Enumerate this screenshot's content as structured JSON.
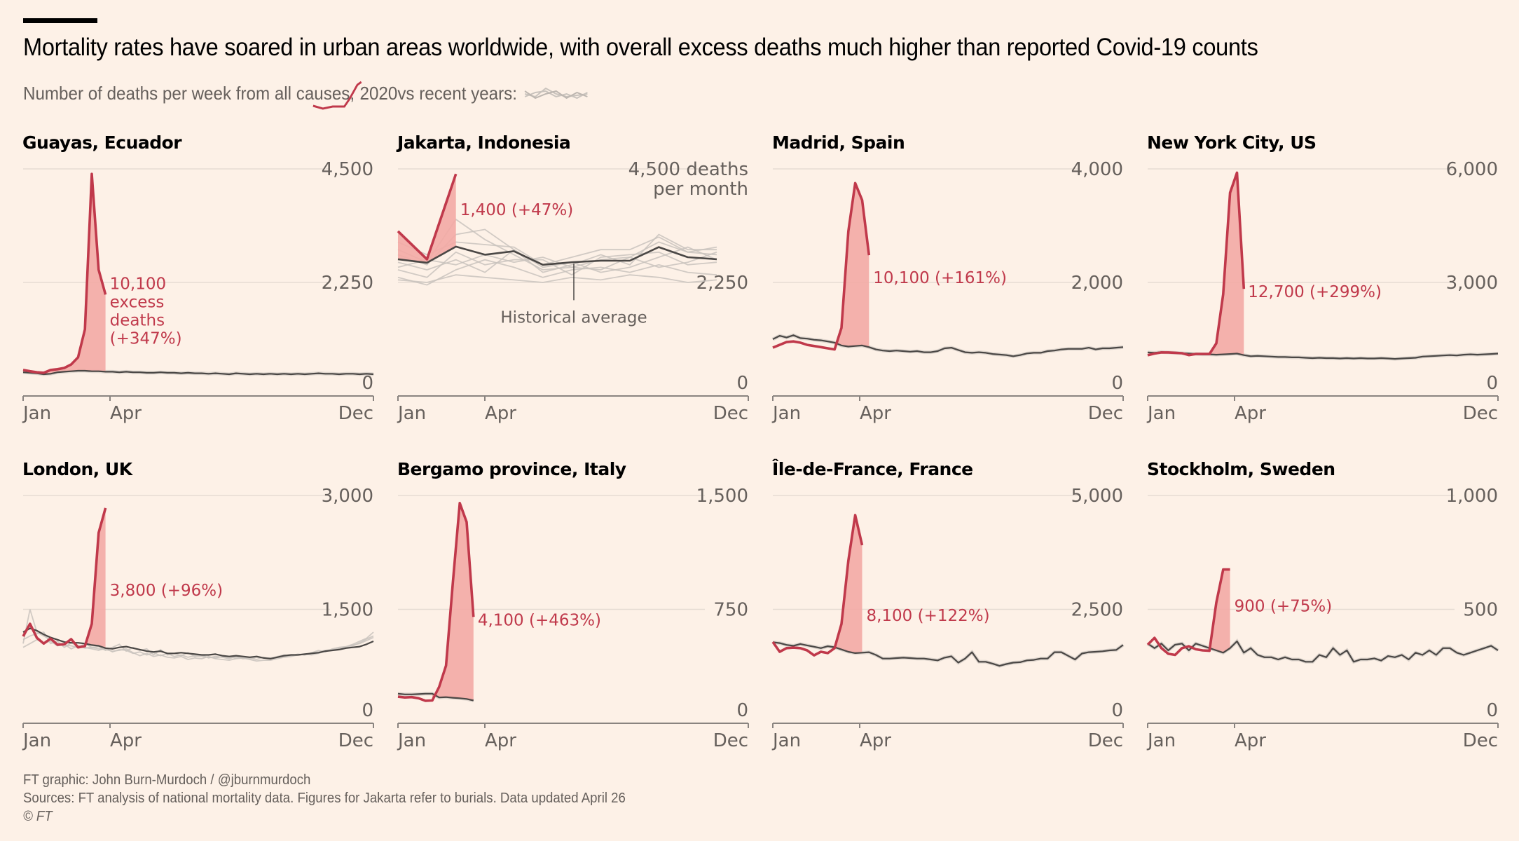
{
  "header": {
    "title": "Mortality rates have soared in urban areas worldwide, with overall excess deaths much higher than reported Covid-19 counts",
    "subtitle_prefix": "Number of deaths per week from all causes,",
    "subtitle_year": "2020",
    "subtitle_suffix": "vs recent years:",
    "legend_2020_icon": "red-line-sparkline-icon",
    "legend_recent_icon": "grey-lines-sparkline-icon"
  },
  "colors": {
    "background": "#fdf1e7",
    "line_2020": "#c0394b",
    "excess_fill": "#f3aaa5",
    "average_line": "#4a4745",
    "recent_years": "#c9c3bd",
    "gridline": "#e6dcd3",
    "axis": "#8a8480",
    "tick_label": "#66605c",
    "annotation": "#c0394b"
  },
  "footer": {
    "credit": "FT graphic: John Burn-Murdoch / @jburnmurdoch",
    "sources": "Sources: FT analysis of national mortality data. Figures for Jakarta refer to burials. Data updated April 26",
    "copyright": "© FT"
  },
  "chart_data": [
    {
      "type": "line",
      "title": "Guayas, Ecuador",
      "x_ticks": [
        "Jan",
        "Apr",
        "Dec"
      ],
      "y_ticks": [
        0,
        2250,
        4500
      ],
      "y_tick_labels": [
        "0",
        "2,250",
        "4,500"
      ],
      "ylim": [
        0,
        4500
      ],
      "granularity": "weekly",
      "annotation": [
        "10,100",
        "excess",
        "deaths",
        "(+347%)"
      ],
      "series_2020": [
        515,
        490,
        470,
        460,
        515,
        530,
        555,
        625,
        765,
        1320,
        4400,
        2500,
        2010
      ],
      "historical_average": [
        470,
        460,
        450,
        430,
        440,
        470,
        480,
        490,
        500,
        500,
        490,
        490,
        480,
        480,
        470,
        480,
        470,
        470,
        460,
        460,
        470,
        460,
        460,
        450,
        460,
        450,
        450,
        440,
        450,
        440,
        430,
        450,
        440,
        430,
        440,
        430,
        440,
        430,
        440,
        430,
        440,
        430,
        440,
        450,
        440,
        440,
        430,
        440,
        440,
        430,
        440,
        430
      ]
    },
    {
      "type": "line",
      "title": "Jakarta, Indonesia",
      "x_ticks": [
        "Jan",
        "Apr",
        "Dec"
      ],
      "y_ticks": [
        0,
        2250,
        4500
      ],
      "y_tick_labels": [
        "0",
        "2,250",
        "4,500 deaths"
      ],
      "y_unit_note": "per month",
      "ylim": [
        0,
        4500
      ],
      "granularity": "monthly",
      "annotation": [
        "1,400 (+47%)"
      ],
      "average_label": "Historical average",
      "series_2020": [
        3265,
        2710,
        4400
      ],
      "historical_average": [
        2710,
        2640,
        2960,
        2800,
        2870,
        2600,
        2650,
        2680,
        2680,
        2950,
        2750,
        2710
      ],
      "recent_years": [
        [
          2900,
          2650,
          3500,
          3100,
          2800,
          2500,
          2550,
          2700,
          2750,
          3050,
          2850,
          2800
        ],
        [
          2800,
          2600,
          3200,
          3300,
          2900,
          2450,
          2600,
          2800,
          2600,
          3200,
          2900,
          2900
        ],
        [
          2350,
          2200,
          2500,
          2700,
          2550,
          2350,
          2500,
          2550,
          2450,
          2600,
          2450,
          2400
        ],
        [
          2500,
          2350,
          2850,
          2600,
          2700,
          2700,
          2400,
          2750,
          2800,
          2850,
          2600,
          2650
        ],
        [
          2650,
          2500,
          2700,
          2450,
          2900,
          2550,
          2650,
          2450,
          2550,
          2750,
          2950,
          2700
        ],
        [
          2300,
          2250,
          2400,
          2350,
          2300,
          2250,
          2350,
          2300,
          2400,
          2350,
          2250,
          2300
        ],
        [
          3050,
          2800,
          3050,
          3000,
          2950,
          2600,
          2750,
          2900,
          2900,
          3150,
          2850,
          2950
        ],
        [
          2550,
          2700,
          2600,
          2800,
          2650,
          2750,
          2550,
          2500,
          2750,
          2550,
          2650,
          2850
        ]
      ]
    },
    {
      "type": "line",
      "title": "Madrid, Spain",
      "x_ticks": [
        "Jan",
        "Apr",
        "Dec"
      ],
      "y_ticks": [
        0,
        2000,
        4000
      ],
      "y_tick_labels": [
        "0",
        "2,000",
        "4,000"
      ],
      "ylim": [
        0,
        4000
      ],
      "granularity": "weekly",
      "annotation": [
        "10,100 (+161%)"
      ],
      "series_2020": [
        850,
        900,
        950,
        960,
        940,
        900,
        880,
        860,
        840,
        820,
        1200,
        2900,
        3750,
        3450,
        2480
      ],
      "historical_average": [
        1000,
        1060,
        1030,
        1070,
        1020,
        1010,
        990,
        980,
        960,
        940,
        890,
        870,
        880,
        890,
        860,
        820,
        800,
        790,
        800,
        790,
        780,
        790,
        770,
        770,
        790,
        840,
        850,
        810,
        770,
        760,
        770,
        760,
        740,
        730,
        720,
        700,
        720,
        750,
        760,
        760,
        790,
        800,
        820,
        830,
        830,
        830,
        850,
        820,
        840,
        840,
        850,
        860
      ]
    },
    {
      "type": "line",
      "title": "New York City, US",
      "x_ticks": [
        "Jan",
        "Apr",
        "Dec"
      ],
      "y_ticks": [
        0,
        3000,
        6000
      ],
      "y_tick_labels": [
        "0",
        "3,000",
        "6,000"
      ],
      "ylim": [
        0,
        6000
      ],
      "granularity": "weekly",
      "annotation": [
        "12,700 (+299%)"
      ],
      "series_2020": [
        1075,
        1120,
        1150,
        1150,
        1140,
        1130,
        1080,
        1110,
        1110,
        1110,
        1390,
        2690,
        5370,
        5900,
        2830
      ],
      "historical_average": [
        1150,
        1140,
        1160,
        1150,
        1140,
        1130,
        1120,
        1110,
        1100,
        1100,
        1090,
        1100,
        1110,
        1120,
        1080,
        1050,
        1060,
        1050,
        1040,
        1030,
        1030,
        1020,
        1020,
        1010,
        1000,
        1010,
        1000,
        1000,
        990,
        1000,
        990,
        1000,
        990,
        990,
        1000,
        990,
        980,
        990,
        1000,
        1010,
        1040,
        1050,
        1060,
        1070,
        1080,
        1070,
        1090,
        1100,
        1090,
        1100,
        1110,
        1120
      ]
    },
    {
      "type": "line",
      "title": "London, UK",
      "x_ticks": [
        "Jan",
        "Apr",
        "Dec"
      ],
      "y_ticks": [
        0,
        1500,
        3000
      ],
      "y_tick_labels": [
        "0",
        "1,500",
        "3,000"
      ],
      "ylim": [
        0,
        3000
      ],
      "granularity": "weekly",
      "annotation": [
        "3,800 (+96%)"
      ],
      "series_2020": [
        1145,
        1310,
        1125,
        1050,
        1115,
        1035,
        1040,
        1108,
        1000,
        1015,
        1310,
        2510,
        2835
      ],
      "historical_average": [
        1200,
        1250,
        1220,
        1170,
        1130,
        1100,
        1070,
        1060,
        1060,
        1050,
        1030,
        1020,
        990,
        980,
        1000,
        1010,
        990,
        970,
        950,
        940,
        950,
        920,
        920,
        930,
        920,
        910,
        900,
        900,
        910,
        890,
        880,
        890,
        880,
        870,
        880,
        860,
        850,
        870,
        890,
        900,
        900,
        910,
        920,
        930,
        950,
        960,
        970,
        990,
        1000,
        1010,
        1040,
        1080
      ],
      "recent_years": [
        [
          1050,
          1500,
          1200,
          1150,
          1100,
          1050,
          1030,
          1020,
          1000,
          1050,
          1000,
          980,
          970,
          950,
          960,
          980,
          930,
          890,
          920,
          880,
          900,
          870,
          860,
          880,
          840,
          860,
          850,
          880,
          850,
          840,
          830,
          850,
          860,
          840,
          820,
          830,
          830,
          850,
          870,
          880,
          900,
          910,
          900,
          920,
          950,
          960,
          990,
          1000,
          1020,
          1060,
          1110,
          1150
        ],
        [
          1100,
          1150,
          1180,
          1200,
          1050,
          1080,
          1000,
          1060,
          1020,
          990,
          1000,
          1010,
          960,
          1000,
          1040,
          950,
          1000,
          960,
          980,
          900,
          970,
          900,
          920,
          890,
          930,
          880,
          900,
          860,
          880,
          870,
          850,
          880,
          850,
          860,
          840,
          870,
          850,
          880,
          900,
          890,
          910,
          900,
          930,
          960,
          940,
          980,
          1000,
          1010,
          1040,
          1080,
          1120,
          1200
        ],
        [
          1000,
          1050,
          1100,
          1060,
          1080,
          1020,
          1040,
          980,
          1020,
          1000,
          980,
          960,
          990,
          940,
          970,
          960,
          920,
          940,
          900,
          930,
          890,
          920,
          880,
          900,
          870,
          890,
          880,
          870,
          860,
          880,
          870,
          860,
          870,
          850,
          870,
          860,
          860,
          870,
          880,
          890,
          910,
          900,
          930,
          940,
          960,
          970,
          980,
          1000,
          1030,
          1050,
          1090,
          1130
        ]
      ]
    },
    {
      "type": "line",
      "title": "Bergamo province, Italy",
      "x_ticks": [
        "Jan",
        "Apr",
        "Dec"
      ],
      "y_ticks": [
        0,
        750,
        1500
      ],
      "y_tick_labels": [
        "0",
        "750",
        "1,500"
      ],
      "ylim": [
        0,
        1500
      ],
      "granularity": "weekly",
      "annotation": [
        "4,100 (+463%)"
      ],
      "series_2020": [
        175,
        170,
        172,
        165,
        148,
        150,
        240,
        380,
        930,
        1450,
        1325,
        700
      ],
      "historical_average": [
        195,
        190,
        190,
        192,
        195,
        195,
        170,
        172,
        168,
        165,
        160,
        150
      ]
    },
    {
      "type": "line",
      "title": "Île-de-France, France",
      "x_ticks": [
        "Jan",
        "Apr",
        "Dec"
      ],
      "y_ticks": [
        0,
        2500,
        5000
      ],
      "y_tick_labels": [
        "0",
        "2,500",
        "5,000"
      ],
      "ylim": [
        0,
        5000
      ],
      "granularity": "weekly",
      "annotation": [
        "8,100 (+122%)"
      ],
      "series_2020": [
        1785,
        1570,
        1650,
        1660,
        1650,
        1600,
        1490,
        1570,
        1540,
        1650,
        2180,
        3570,
        4570,
        3910
      ],
      "historical_average": [
        1780,
        1760,
        1720,
        1700,
        1740,
        1710,
        1680,
        1650,
        1690,
        1670,
        1620,
        1570,
        1540,
        1550,
        1560,
        1500,
        1420,
        1420,
        1430,
        1440,
        1430,
        1420,
        1420,
        1400,
        1380,
        1440,
        1470,
        1330,
        1420,
        1560,
        1350,
        1350,
        1310,
        1260,
        1300,
        1330,
        1340,
        1380,
        1390,
        1420,
        1420,
        1560,
        1560,
        1480,
        1400,
        1530,
        1560,
        1570,
        1580,
        1600,
        1610,
        1720
      ]
    },
    {
      "type": "line",
      "title": "Stockholm, Sweden",
      "x_ticks": [
        "Jan",
        "Apr",
        "Dec"
      ],
      "y_ticks": [
        0,
        500,
        1000
      ],
      "y_tick_labels": [
        "0",
        "500",
        "1,000"
      ],
      "ylim": [
        0,
        1000
      ],
      "granularity": "weekly",
      "annotation": [
        "900 (+75%)"
      ],
      "series_2020": [
        345,
        375,
        330,
        305,
        300,
        330,
        338,
        325,
        320,
        318,
        530,
        675,
        675
      ],
      "historical_average": [
        350,
        330,
        350,
        320,
        345,
        350,
        320,
        350,
        340,
        330,
        320,
        310,
        330,
        360,
        310,
        330,
        300,
        290,
        290,
        280,
        290,
        280,
        280,
        270,
        270,
        300,
        290,
        330,
        300,
        320,
        270,
        280,
        280,
        285,
        275,
        295,
        290,
        300,
        280,
        310,
        300,
        320,
        300,
        330,
        330,
        310,
        300,
        310,
        320,
        330,
        340,
        320
      ]
    }
  ]
}
